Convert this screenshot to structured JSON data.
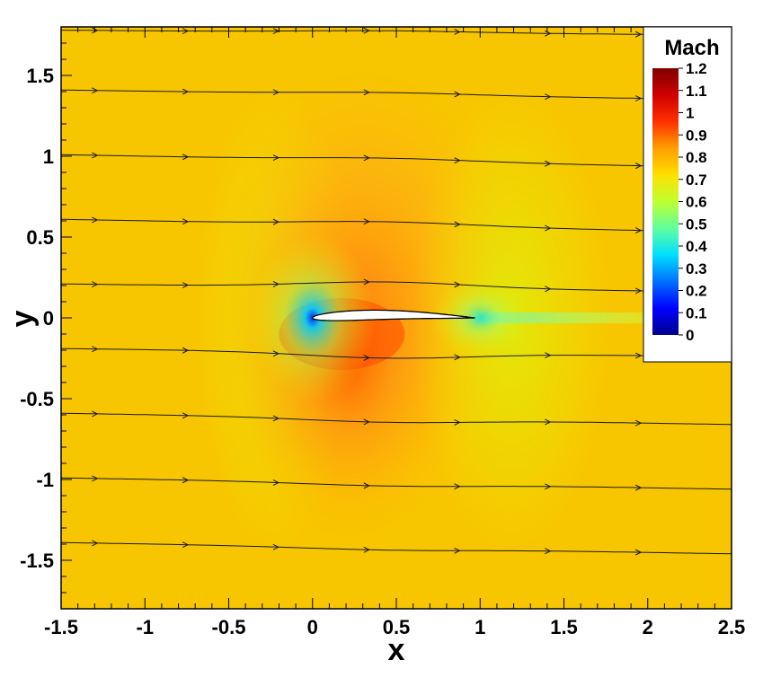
{
  "chart_data": {
    "type": "heatmap",
    "title": "",
    "xlabel": "x",
    "ylabel": "y",
    "xlim": [
      -1.5,
      2.5
    ],
    "ylim": [
      -1.8,
      1.8
    ],
    "x_ticks": [
      {
        "value": -1.5,
        "label": "-1.5"
      },
      {
        "value": -1,
        "label": "-1"
      },
      {
        "value": -0.5,
        "label": "-0.5"
      },
      {
        "value": 0,
        "label": "0"
      },
      {
        "value": 0.5,
        "label": "0.5"
      },
      {
        "value": 1,
        "label": "1"
      },
      {
        "value": 1.5,
        "label": "1.5"
      },
      {
        "value": 2,
        "label": "2"
      },
      {
        "value": 2.5,
        "label": "2.5"
      }
    ],
    "y_ticks": [
      {
        "value": 1.5,
        "label": "1.5"
      },
      {
        "value": 1,
        "label": "1"
      },
      {
        "value": 0.5,
        "label": "0.5"
      },
      {
        "value": 0,
        "label": "0"
      },
      {
        "value": -0.5,
        "label": "-0.5"
      },
      {
        "value": -1,
        "label": "-1"
      },
      {
        "value": -1.5,
        "label": "-1.5"
      }
    ],
    "colorbar": {
      "title": "Mach",
      "min": 0,
      "max": 1.2,
      "levels": [
        {
          "value": 1.2,
          "label": "1.2"
        },
        {
          "value": 1.1,
          "label": "1.1"
        },
        {
          "value": 1.0,
          "label": "1"
        },
        {
          "value": 0.9,
          "label": "0.9"
        },
        {
          "value": 0.8,
          "label": "0.8"
        },
        {
          "value": 0.7,
          "label": "0.7"
        },
        {
          "value": 0.6,
          "label": "0.6"
        },
        {
          "value": 0.5,
          "label": "0.5"
        },
        {
          "value": 0.4,
          "label": "0.4"
        },
        {
          "value": 0.3,
          "label": "0.3"
        },
        {
          "value": 0.2,
          "label": "0.2"
        },
        {
          "value": 0.1,
          "label": "0.1"
        },
        {
          "value": 0.0,
          "label": "0"
        }
      ],
      "colors": [
        "#00008f",
        "#0000ff",
        "#0070ff",
        "#00dfff",
        "#50ff9f",
        "#bfff30",
        "#ffef00",
        "#ff9f00",
        "#ff3000",
        "#cf0000",
        "#7f0000"
      ],
      "placement": "top-right"
    },
    "freestream_mach": 0.78,
    "airfoil": {
      "leading_edge": [
        0,
        0
      ],
      "trailing_edge": [
        0.97,
        0
      ],
      "chord": 0.97
    },
    "streamlines": [
      {
        "y0": 1.78,
        "y1": 1.75
      },
      {
        "y0": 1.41,
        "y1": 1.35
      },
      {
        "y0": 1.01,
        "y1": 0.93
      },
      {
        "y0": 0.61,
        "y1": 0.53
      },
      {
        "y0": 0.21,
        "y1": 0.16
      },
      {
        "y0": -0.19,
        "y1": -0.24
      },
      {
        "y0": -0.59,
        "y1": -0.66
      },
      {
        "y0": -0.99,
        "y1": -1.06
      },
      {
        "y0": -1.39,
        "y1": -1.46
      }
    ]
  }
}
